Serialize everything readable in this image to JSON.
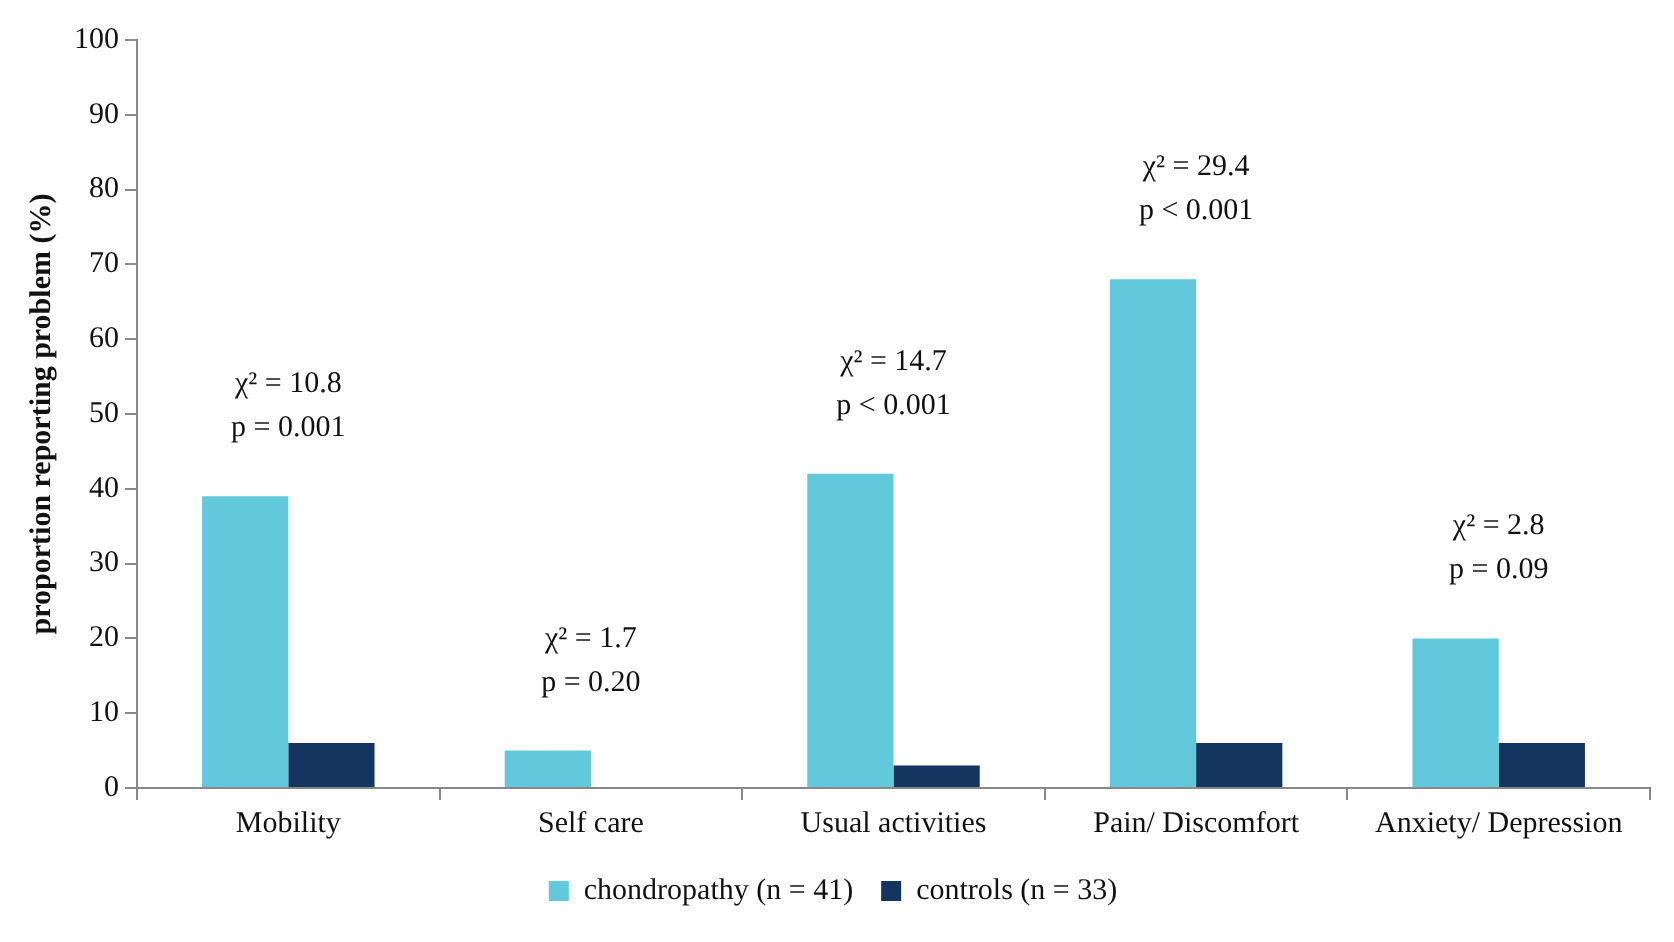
{
  "chart_data": {
    "type": "bar",
    "ylabel": "proportion reporting problem (%)",
    "categories": [
      "Mobility",
      "Self care",
      "Usual activities",
      "Pain/ Discomfort",
      "Anxiety/ Depression"
    ],
    "series": [
      {
        "name": "chondropathy (n = 41)",
        "color": "#62c9dc",
        "values": [
          39,
          5,
          42,
          68,
          20
        ]
      },
      {
        "name": "controls (n = 33)",
        "color": "#14355f",
        "values": [
          6,
          0,
          3,
          6,
          6
        ]
      }
    ],
    "ylim": [
      0,
      100
    ],
    "yticks": [
      0,
      10,
      20,
      30,
      40,
      50,
      60,
      70,
      80,
      90,
      100
    ],
    "grid": false,
    "legend": "bottom",
    "annotations": [
      "χ² = 10.8\np = 0.001",
      "χ² = 1.7\np = 0.20",
      "χ² = 14.7\np < 0.001",
      "χ² = 29.4\np < 0.001",
      "χ² = 2.8\np = 0.09"
    ]
  }
}
